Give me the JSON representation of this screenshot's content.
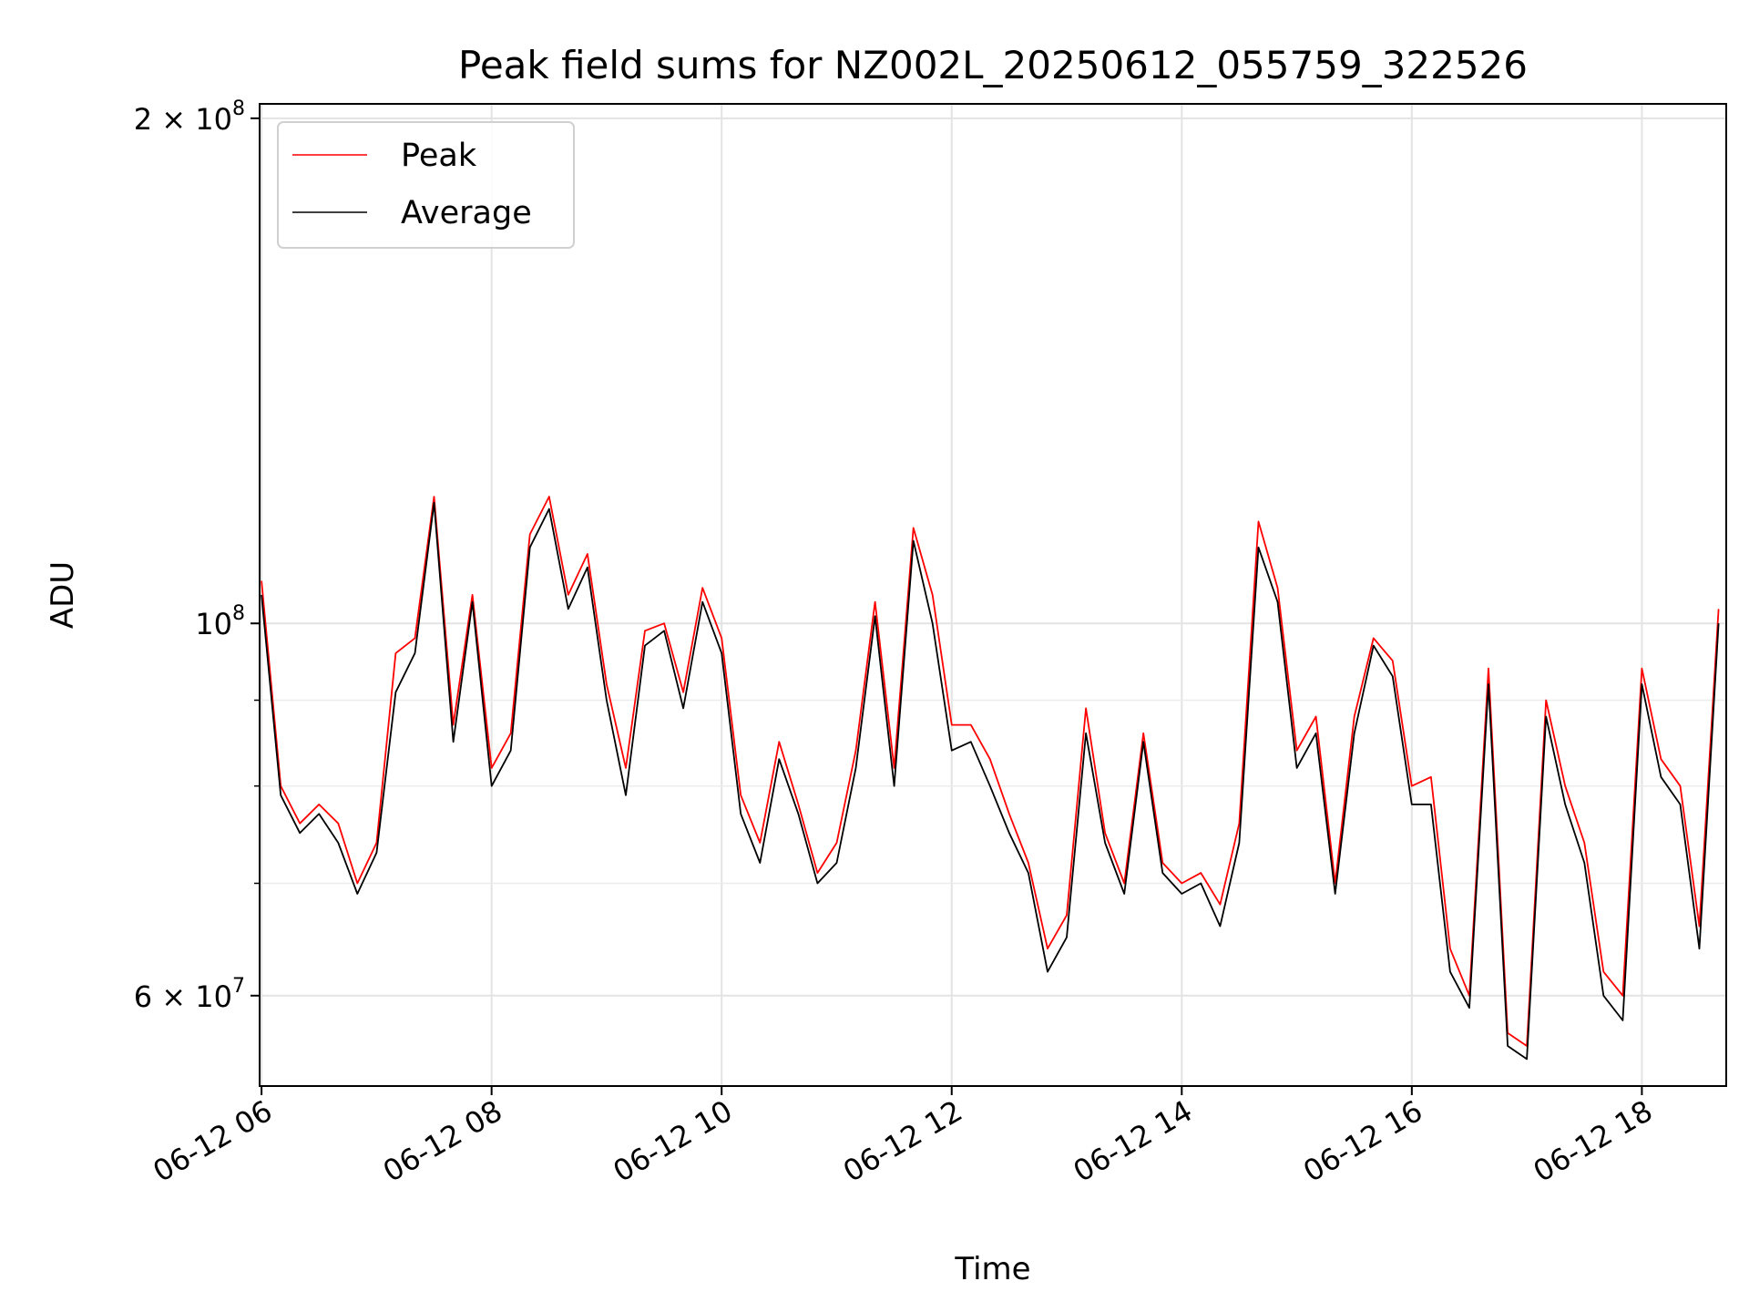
{
  "chart_data": {
    "type": "line",
    "title": "Peak field sums for NZ002L_20250612_055759_322526",
    "xlabel": "Time",
    "ylabel": "ADU",
    "y_scale": "log",
    "ylim": [
      53000000,
      204000000
    ],
    "xlim": [
      "06-12 05:59",
      "06-12 18:44"
    ],
    "grid": true,
    "legend_position": "top-left",
    "x_ticks": [
      "06-12 06",
      "06-12 08",
      "06-12 10",
      "06-12 12",
      "06-12 14",
      "06-12 16",
      "06-12 18"
    ],
    "y_ticks_major": [
      {
        "value": 60000000,
        "mantissa": "6",
        "exp": "7"
      },
      {
        "value": 100000000,
        "mantissa": "",
        "exp": "8"
      },
      {
        "value": 200000000,
        "mantissa": "2",
        "exp": "8"
      }
    ],
    "y_ticks_minor": [
      70000000,
      80000000,
      90000000
    ],
    "x": [
      "06-12 06:00",
      "06-12 06:10",
      "06-12 06:20",
      "06-12 06:30",
      "06-12 06:40",
      "06-12 06:50",
      "06-12 07:00",
      "06-12 07:10",
      "06-12 07:20",
      "06-12 07:30",
      "06-12 07:40",
      "06-12 07:50",
      "06-12 08:00",
      "06-12 08:10",
      "06-12 08:20",
      "06-12 08:30",
      "06-12 08:40",
      "06-12 08:50",
      "06-12 09:00",
      "06-12 09:10",
      "06-12 09:20",
      "06-12 09:30",
      "06-12 09:40",
      "06-12 09:50",
      "06-12 10:00",
      "06-12 10:10",
      "06-12 10:20",
      "06-12 10:30",
      "06-12 10:40",
      "06-12 10:50",
      "06-12 11:00",
      "06-12 11:10",
      "06-12 11:20",
      "06-12 11:30",
      "06-12 11:40",
      "06-12 11:50",
      "06-12 12:00",
      "06-12 12:10",
      "06-12 12:20",
      "06-12 12:30",
      "06-12 12:40",
      "06-12 12:50",
      "06-12 13:00",
      "06-12 13:10",
      "06-12 13:20",
      "06-12 13:30",
      "06-12 13:40",
      "06-12 13:50",
      "06-12 14:00",
      "06-12 14:10",
      "06-12 14:20",
      "06-12 14:30",
      "06-12 14:40",
      "06-12 14:50",
      "06-12 15:00",
      "06-12 15:10",
      "06-12 15:20",
      "06-12 15:30",
      "06-12 15:40",
      "06-12 15:50",
      "06-12 16:00",
      "06-12 16:10",
      "06-12 16:20",
      "06-12 16:30",
      "06-12 16:40",
      "06-12 16:50",
      "06-12 17:00",
      "06-12 17:10",
      "06-12 17:20",
      "06-12 17:30",
      "06-12 17:40",
      "06-12 17:50",
      "06-12 18:00",
      "06-12 18:10",
      "06-12 18:20",
      "06-12 18:30",
      "06-12 18:40"
    ],
    "series": [
      {
        "name": "Average",
        "color": "#000000",
        "values": [
          104000000,
          79000000,
          75000000,
          77000000,
          74000000,
          69000000,
          73000000,
          91000000,
          96000000,
          118000000,
          85000000,
          103000000,
          80000000,
          84000000,
          111000000,
          117000000,
          102000000,
          108000000,
          90000000,
          79000000,
          97000000,
          99000000,
          89000000,
          103000000,
          96000000,
          77000000,
          72000000,
          83000000,
          77000000,
          70000000,
          72000000,
          82000000,
          101000000,
          80000000,
          112000000,
          100000000,
          84000000,
          85000000,
          80000000,
          75000000,
          71000000,
          62000000,
          65000000,
          86000000,
          74000000,
          69000000,
          85000000,
          71000000,
          69000000,
          70000000,
          66000000,
          74000000,
          111000000,
          103000000,
          82000000,
          86000000,
          69000000,
          86000000,
          97000000,
          93000000,
          78000000,
          78000000,
          62000000,
          59000000,
          92000000,
          56000000,
          55000000,
          88000000,
          78000000,
          72000000,
          60000000,
          58000000,
          92000000,
          81000000,
          78000000,
          64000000,
          100000000
        ]
      },
      {
        "name": "Peak",
        "color": "#ff0000",
        "values": [
          106000000,
          80000000,
          76000000,
          78000000,
          76000000,
          70000000,
          74000000,
          96000000,
          98000000,
          119000000,
          87000000,
          104000000,
          82000000,
          86000000,
          113000000,
          119000000,
          104000000,
          110000000,
          92000000,
          82000000,
          99000000,
          100000000,
          91000000,
          105000000,
          98000000,
          79000000,
          74000000,
          85000000,
          78000000,
          71000000,
          74000000,
          84000000,
          103000000,
          82000000,
          114000000,
          104000000,
          87000000,
          87000000,
          83000000,
          77000000,
          72000000,
          64000000,
          67000000,
          89000000,
          75000000,
          70000000,
          86000000,
          72000000,
          70000000,
          71000000,
          68000000,
          76000000,
          115000000,
          105000000,
          84000000,
          88000000,
          70000000,
          88000000,
          98000000,
          95000000,
          80000000,
          81000000,
          64000000,
          60000000,
          94000000,
          57000000,
          56000000,
          90000000,
          80000000,
          74000000,
          62000000,
          60000000,
          94000000,
          83000000,
          80000000,
          66000000,
          102000000
        ]
      }
    ]
  }
}
